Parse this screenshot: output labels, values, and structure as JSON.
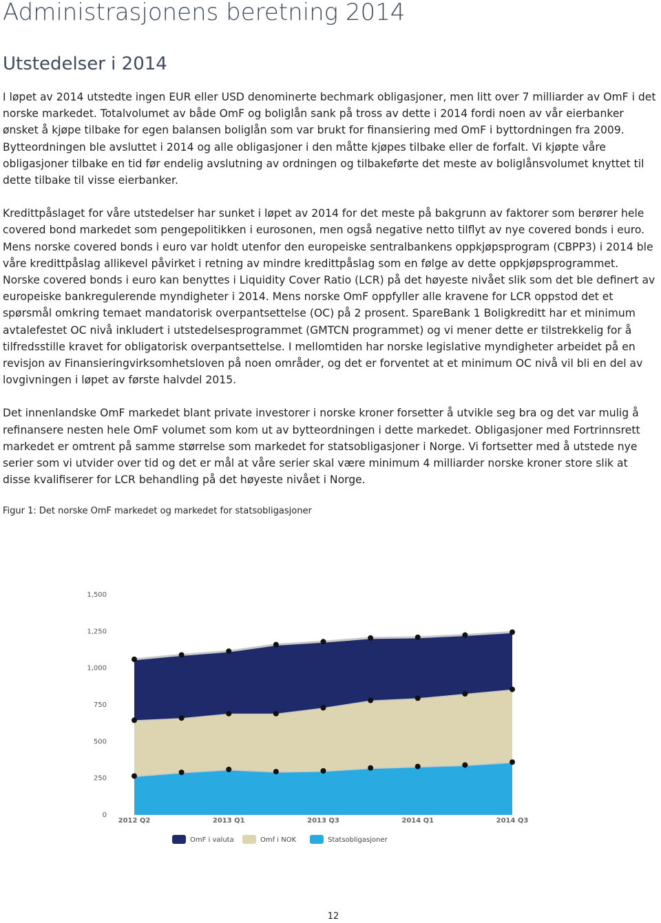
{
  "header": {
    "title": "Administrasjonens beretning 2014",
    "subtitle": "Utstedelser i 2014"
  },
  "paragraphs": [
    "I løpet av 2014 utstedte ingen EUR eller USD denominerte bechmark obligasjoner, men litt over 7 milliarder av OmF i det norske markedet. Totalvolumet av både OmF og boliglån sank på tross av dette i 2014 fordi noen av vår eierbanker ønsket å kjøpe tilbake for egen balansen boliglån som var brukt for finansiering med OmF i byttordningen fra 2009. Bytteordningen ble avsluttet i 2014 og alle obligasjoner i den måtte kjøpes tilbake eller de forfalt. Vi kjøpte våre obligasjoner tilbake en tid før endelig avslutning av ordningen og tilbakeførte det meste av boliglånsvolumet knyttet til dette tilbake til visse eierbanker.",
    "Kredittpåslaget for våre utstedelser har sunket i løpet av 2014 for det meste på bakgrunn av faktorer som berører hele covered bond markedet som pengepolitikken i eurosonen, men også negative netto tilflyt av nye covered bonds i euro. Mens norske covered bonds i euro var holdt utenfor den europeiske sentralbankens oppkjøpsprogram (CBPP3) i 2014 ble våre kredittpåslag allikevel påvirket i retning av mindre kredittpåslag som en følge av dette oppkjøpsprogrammet. Norske covered bonds i euro kan benyttes i Liquidity Cover Ratio (LCR) på det høyeste nivået slik som det ble definert av europeiske bankregulerende myndigheter i 2014. Mens norske OmF oppfyller alle kravene for LCR oppstod det et spørsmål omkring temaet mandatorisk overpantsettelse (OC) på 2 prosent. SpareBank 1 Boligkreditt har et minimum avtalefestet OC nivå inkludert i utstedelsesprogrammet (GMTCN programmet) og vi mener dette er tilstrekkelig for å tilfredsstille kravet for obligatorisk overpantsettelse. I mellomtiden har norske legislative myndigheter arbeidet på en revisjon av Finansieringvirksomhetsloven på noen områder, og det er forventet at et minimum OC nivå vil bli en del av lovgivningen i løpet av første halvdel 2015.",
    "Det innenlandske OmF markedet blant private investorer i norske kroner forsetter å utvikle seg bra og det var mulig å refinansere nesten hele OmF volumet som kom ut av bytteordningen i dette markedet. Obligasjoner med Fortrinnsrett markedet er omtrent på samme størrelse som markedet for statsobligasjoner i Norge. Vi fortsetter med å utstede nye serier som vi utvider over tid og det er mål at våre serier skal være minimum 4 milliarder norske kroner store slik at disse kvalifiserer for LCR behandling på det høyeste nivået i Norge."
  ],
  "figure": {
    "caption": "Figur 1: Det norske OmF markedet og markedet for statsobligasjoner"
  },
  "chart_data": {
    "type": "stacked-area",
    "categories": [
      "2012 Q2",
      null,
      "2013 Q1",
      null,
      "2013 Q3",
      null,
      "2014 Q1",
      null,
      "2014 Q3"
    ],
    "series": [
      {
        "name": "OmF i valuta",
        "color": "#1f2a6b",
        "values": [
          415,
          430,
          425,
          470,
          450,
          425,
          415,
          400,
          390
        ]
      },
      {
        "name": "Omf i NOK",
        "color": "#ddd4b2",
        "values": [
          380,
          370,
          380,
          395,
          430,
          460,
          465,
          485,
          495
        ]
      },
      {
        "name": "Statsobligasjoner",
        "color": "#29abe2",
        "values": [
          265,
          290,
          310,
          295,
          300,
          320,
          330,
          340,
          360
        ]
      }
    ],
    "ylim": [
      0,
      1500
    ],
    "yticks": [
      0,
      250,
      500,
      750,
      {
        "value": 1000,
        "label": "1,000"
      },
      {
        "value": 1250,
        "label": "1,250"
      },
      {
        "value": 1500,
        "label": "1,500"
      }
    ],
    "grid": false
  },
  "page_number": "12"
}
